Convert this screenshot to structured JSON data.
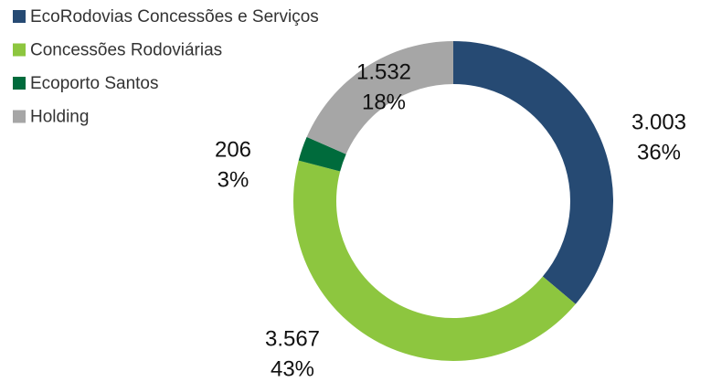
{
  "chart_data": {
    "type": "donut",
    "categories": [
      "EcoRodovias Concessões e Serviços",
      "Concessões Rodoviárias",
      "Ecoporto Santos",
      "Holding"
    ],
    "values": [
      3003,
      3567,
      206,
      1532
    ],
    "value_labels": [
      "3.003",
      "3.567",
      "206",
      "1.532"
    ],
    "percentages": [
      36,
      43,
      3,
      18
    ],
    "percentage_labels": [
      "36%",
      "43%",
      "3%",
      "18%"
    ],
    "colors": [
      "#264a73",
      "#8dc63f",
      "#006b3c",
      "#a6a6a6"
    ],
    "legend": "top-left"
  }
}
